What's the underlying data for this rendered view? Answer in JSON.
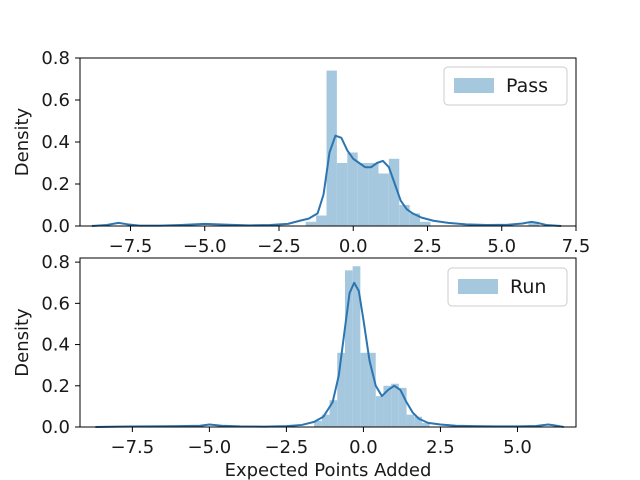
{
  "chart_data": [
    {
      "type": "histogram+kde",
      "legend": "Pass",
      "legend_position": "upper right",
      "xlabel": "",
      "ylabel": "Density",
      "xlim": [
        -9.2,
        7.5
      ],
      "ylim": [
        0,
        0.8
      ],
      "xticks": [
        -7.5,
        -5.0,
        -2.5,
        0.0,
        2.5,
        5.0,
        7.5
      ],
      "xtick_labels": [
        "−7.5",
        "−5.0",
        "−2.5",
        "0.0",
        "2.5",
        "5.0",
        "7.5"
      ],
      "yticks": [
        0.0,
        0.2,
        0.4,
        0.6,
        0.8
      ],
      "ytick_labels": [
        "0.0",
        "0.2",
        "0.4",
        "0.6",
        "0.8"
      ],
      "bar_color": "#a6c8df",
      "line_color": "#2c75b1",
      "bins": [
        {
          "x0": -1.6,
          "x1": -1.25,
          "density": 0.02
        },
        {
          "x0": -1.25,
          "x1": -0.9,
          "density": 0.05
        },
        {
          "x0": -0.9,
          "x1": -0.55,
          "density": 0.74
        },
        {
          "x0": -0.55,
          "x1": -0.2,
          "density": 0.3
        },
        {
          "x0": -0.2,
          "x1": 0.15,
          "density": 0.35
        },
        {
          "x0": 0.15,
          "x1": 0.5,
          "density": 0.3
        },
        {
          "x0": 0.5,
          "x1": 0.85,
          "density": 0.3
        },
        {
          "x0": 0.85,
          "x1": 1.2,
          "density": 0.25
        },
        {
          "x0": 1.2,
          "x1": 1.55,
          "density": 0.32
        },
        {
          "x0": 1.55,
          "x1": 1.9,
          "density": 0.1
        },
        {
          "x0": 1.9,
          "x1": 2.25,
          "density": 0.06
        },
        {
          "x0": 2.25,
          "x1": 2.6,
          "density": 0.02
        },
        {
          "x0": 5.9,
          "x1": 6.25,
          "density": 0.02
        }
      ],
      "kde": {
        "x": [
          -8.8,
          -8.3,
          -7.9,
          -7.6,
          -7.2,
          -6.5,
          -5.8,
          -5.0,
          -4.2,
          -3.5,
          -2.8,
          -2.2,
          -1.8,
          -1.5,
          -1.2,
          -1.0,
          -0.8,
          -0.6,
          -0.4,
          -0.2,
          0.0,
          0.2,
          0.4,
          0.6,
          0.8,
          1.0,
          1.2,
          1.4,
          1.6,
          1.8,
          2.0,
          2.3,
          2.7,
          3.2,
          3.8,
          4.5,
          5.2,
          5.7,
          6.0,
          6.2,
          6.5,
          7.0
        ],
        "y": [
          0.0,
          0.005,
          0.015,
          0.008,
          0.002,
          0.002,
          0.005,
          0.01,
          0.006,
          0.003,
          0.005,
          0.01,
          0.025,
          0.035,
          0.06,
          0.15,
          0.35,
          0.43,
          0.42,
          0.36,
          0.32,
          0.3,
          0.28,
          0.28,
          0.3,
          0.31,
          0.28,
          0.2,
          0.12,
          0.08,
          0.06,
          0.04,
          0.025,
          0.015,
          0.008,
          0.005,
          0.006,
          0.012,
          0.02,
          0.015,
          0.005,
          0.0
        ]
      }
    },
    {
      "type": "histogram+kde",
      "legend": "Run",
      "legend_position": "upper right",
      "xlabel": "Expected Points Added",
      "ylabel": "Density",
      "xlim": [
        -9.2,
        6.9
      ],
      "ylim": [
        0,
        0.82
      ],
      "xticks": [
        -7.5,
        -5.0,
        -2.5,
        0.0,
        2.5,
        5.0
      ],
      "xtick_labels": [
        "−7.5",
        "−5.0",
        "−2.5",
        "0.0",
        "2.5",
        "5.0"
      ],
      "yticks": [
        0.0,
        0.2,
        0.4,
        0.6,
        0.8
      ],
      "ytick_labels": [
        "0.0",
        "0.2",
        "0.4",
        "0.6",
        "0.8"
      ],
      "bar_color": "#a6c8df",
      "line_color": "#2c75b1",
      "bins": [
        {
          "x0": -1.6,
          "x1": -1.35,
          "density": 0.03
        },
        {
          "x0": -1.35,
          "x1": -1.1,
          "density": 0.06
        },
        {
          "x0": -1.1,
          "x1": -0.85,
          "density": 0.13
        },
        {
          "x0": -0.85,
          "x1": -0.6,
          "density": 0.36
        },
        {
          "x0": -0.6,
          "x1": -0.35,
          "density": 0.76
        },
        {
          "x0": -0.35,
          "x1": -0.1,
          "density": 0.78
        },
        {
          "x0": -0.1,
          "x1": 0.15,
          "density": 0.36
        },
        {
          "x0": 0.15,
          "x1": 0.4,
          "density": 0.36
        },
        {
          "x0": 0.4,
          "x1": 0.65,
          "density": 0.15
        },
        {
          "x0": 0.65,
          "x1": 0.9,
          "density": 0.2
        },
        {
          "x0": 0.9,
          "x1": 1.15,
          "density": 0.21
        },
        {
          "x0": 1.15,
          "x1": 1.4,
          "density": 0.19
        },
        {
          "x0": 1.4,
          "x1": 1.65,
          "density": 0.06
        },
        {
          "x0": 1.65,
          "x1": 1.9,
          "density": 0.05
        },
        {
          "x0": 1.9,
          "x1": 2.15,
          "density": 0.02
        }
      ],
      "kde": {
        "x": [
          -8.7,
          -8.0,
          -7.0,
          -6.0,
          -5.3,
          -5.0,
          -4.6,
          -4.0,
          -3.2,
          -2.5,
          -2.0,
          -1.6,
          -1.3,
          -1.0,
          -0.8,
          -0.6,
          -0.45,
          -0.3,
          -0.15,
          0.0,
          0.2,
          0.4,
          0.6,
          0.8,
          1.0,
          1.2,
          1.4,
          1.6,
          1.8,
          2.1,
          2.5,
          3.0,
          3.6,
          4.3,
          5.0,
          5.6,
          6.0,
          6.2,
          6.5
        ],
        "y": [
          0.0,
          0.002,
          0.003,
          0.004,
          0.006,
          0.012,
          0.006,
          0.003,
          0.002,
          0.004,
          0.01,
          0.025,
          0.05,
          0.12,
          0.25,
          0.48,
          0.65,
          0.7,
          0.66,
          0.52,
          0.32,
          0.2,
          0.15,
          0.18,
          0.2,
          0.18,
          0.12,
          0.07,
          0.04,
          0.02,
          0.012,
          0.006,
          0.004,
          0.003,
          0.003,
          0.005,
          0.012,
          0.008,
          0.0
        ]
      }
    }
  ]
}
